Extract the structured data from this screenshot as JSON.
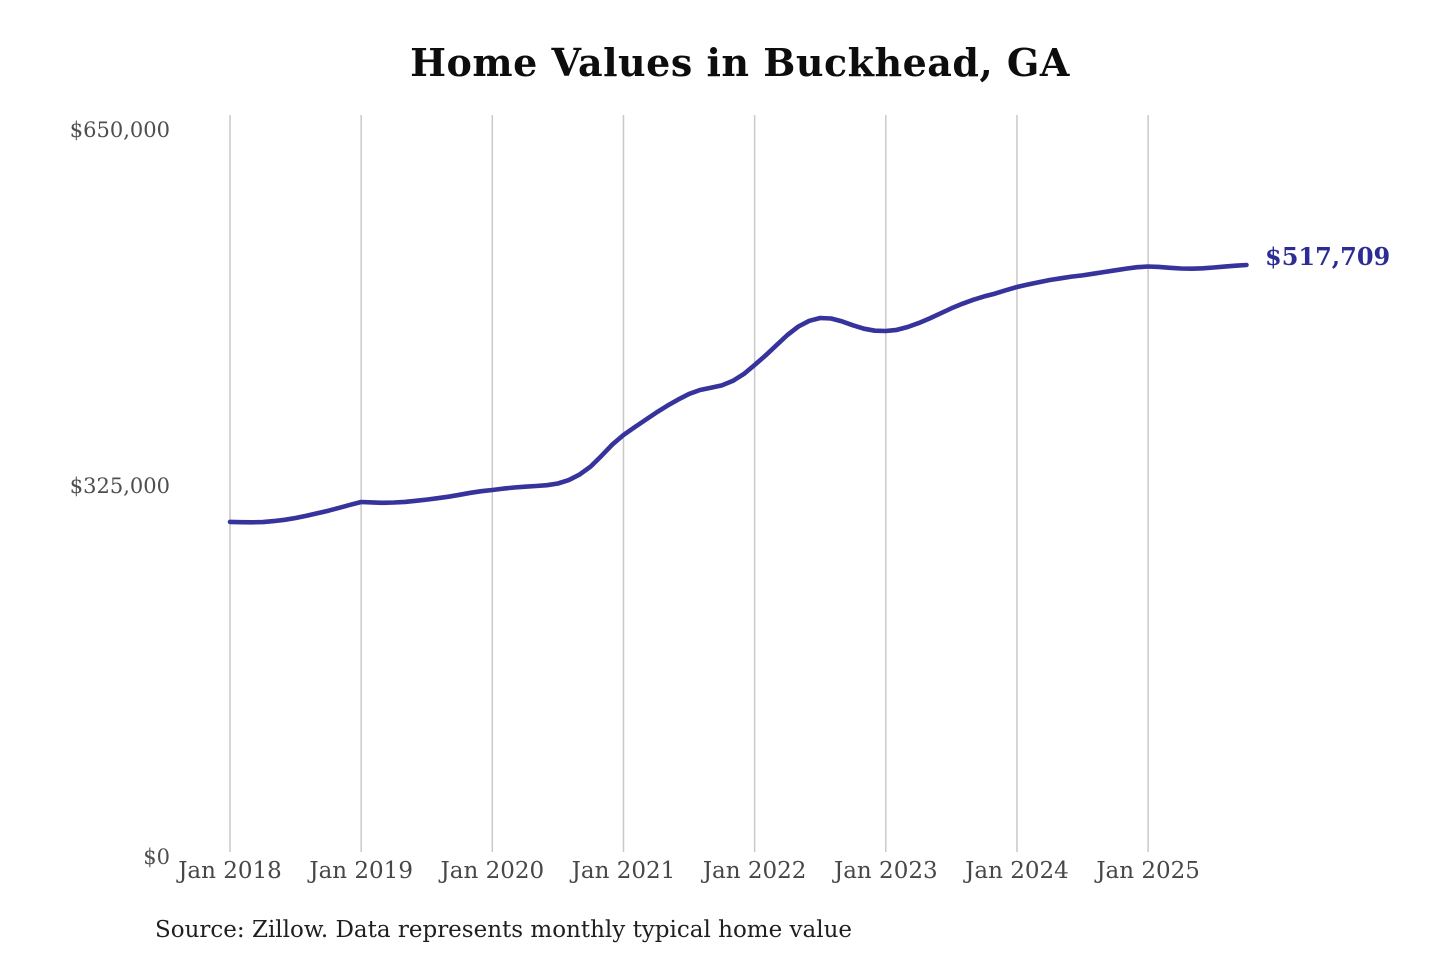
{
  "title": "Home Values in Buckhead, GA",
  "source_note": "Source: Zillow. Data represents monthly typical home value",
  "end_label": "$517,709",
  "colors": {
    "line": "#37339c",
    "end_label_text": "#2c2c94",
    "gridline": "#c9c9c9",
    "axis_text": "#4e4e4e",
    "title_text": "#0d0d0d",
    "source_text": "#1f1f1f",
    "background": "#ffffff"
  },
  "y_axis": {
    "labels": [
      {
        "text": "$650,000",
        "value": 650000
      },
      {
        "text": "$325,000",
        "value": 325000
      },
      {
        "text": "$0",
        "value": 0
      }
    ],
    "max": 650000,
    "min": 0
  },
  "x_axis": {
    "labels": [
      "Jan 2018",
      "Jan 2019",
      "Jan 2020",
      "Jan 2021",
      "Jan 2022",
      "Jan 2023",
      "Jan 2024",
      "Jan 2025"
    ]
  },
  "chart_data": {
    "type": "line",
    "title": "Home Values in Buckhead, GA",
    "xlabel": "",
    "ylabel": "",
    "ylim": [
      0,
      650000
    ],
    "unit": "USD",
    "legend": "none",
    "grid": "vertical-only",
    "annotation": {
      "last_value_label": "$517,709",
      "position": "right-of-line-end"
    },
    "x": [
      "2018-01",
      "2018-02",
      "2018-03",
      "2018-04",
      "2018-05",
      "2018-06",
      "2018-07",
      "2018-08",
      "2018-09",
      "2018-10",
      "2018-11",
      "2018-12",
      "2019-01",
      "2019-02",
      "2019-03",
      "2019-04",
      "2019-05",
      "2019-06",
      "2019-07",
      "2019-08",
      "2019-09",
      "2019-10",
      "2019-11",
      "2019-12",
      "2020-01",
      "2020-02",
      "2020-03",
      "2020-04",
      "2020-05",
      "2020-06",
      "2020-07",
      "2020-08",
      "2020-09",
      "2020-10",
      "2020-11",
      "2020-12",
      "2021-01",
      "2021-02",
      "2021-03",
      "2021-04",
      "2021-05",
      "2021-06",
      "2021-07",
      "2021-08",
      "2021-09",
      "2021-10",
      "2021-11",
      "2021-12",
      "2022-01",
      "2022-02",
      "2022-03",
      "2022-04",
      "2022-05",
      "2022-06",
      "2022-07",
      "2022-08",
      "2022-09",
      "2022-10",
      "2022-11",
      "2022-12",
      "2023-01",
      "2023-02",
      "2023-03",
      "2023-04",
      "2023-05",
      "2023-06",
      "2023-07",
      "2023-08",
      "2023-09",
      "2023-10",
      "2023-11",
      "2023-12",
      "2024-01",
      "2024-02",
      "2024-03",
      "2024-04",
      "2024-05",
      "2024-06",
      "2024-07",
      "2024-08",
      "2024-09",
      "2024-10",
      "2024-11",
      "2024-12",
      "2025-01",
      "2025-02",
      "2025-03",
      "2025-04",
      "2025-05",
      "2025-06",
      "2025-07",
      "2025-08",
      "2025-09",
      "2025-10"
    ],
    "values": [
      291100,
      290900,
      290800,
      291000,
      291800,
      293000,
      294600,
      296500,
      298700,
      301000,
      303600,
      306200,
      308700,
      308300,
      308000,
      308200,
      308800,
      309700,
      310800,
      312000,
      313400,
      315000,
      316800,
      318200,
      319300,
      320500,
      321500,
      322200,
      322800,
      323500,
      325000,
      328000,
      333000,
      340000,
      349500,
      359500,
      367800,
      374500,
      381000,
      387500,
      393500,
      399000,
      404000,
      407500,
      409500,
      411500,
      415500,
      421500,
      429500,
      438000,
      447000,
      456000,
      463500,
      468500,
      471000,
      470500,
      468000,
      464500,
      461500,
      459800,
      459500,
      460500,
      463000,
      466500,
      470500,
      475000,
      479500,
      483500,
      487000,
      490000,
      492500,
      495500,
      498300,
      500500,
      502500,
      504500,
      506000,
      507500,
      508500,
      510000,
      511500,
      513000,
      514500,
      515800,
      516400,
      516000,
      515200,
      514600,
      514400,
      514800,
      515500,
      516300,
      517100,
      517709
    ]
  }
}
